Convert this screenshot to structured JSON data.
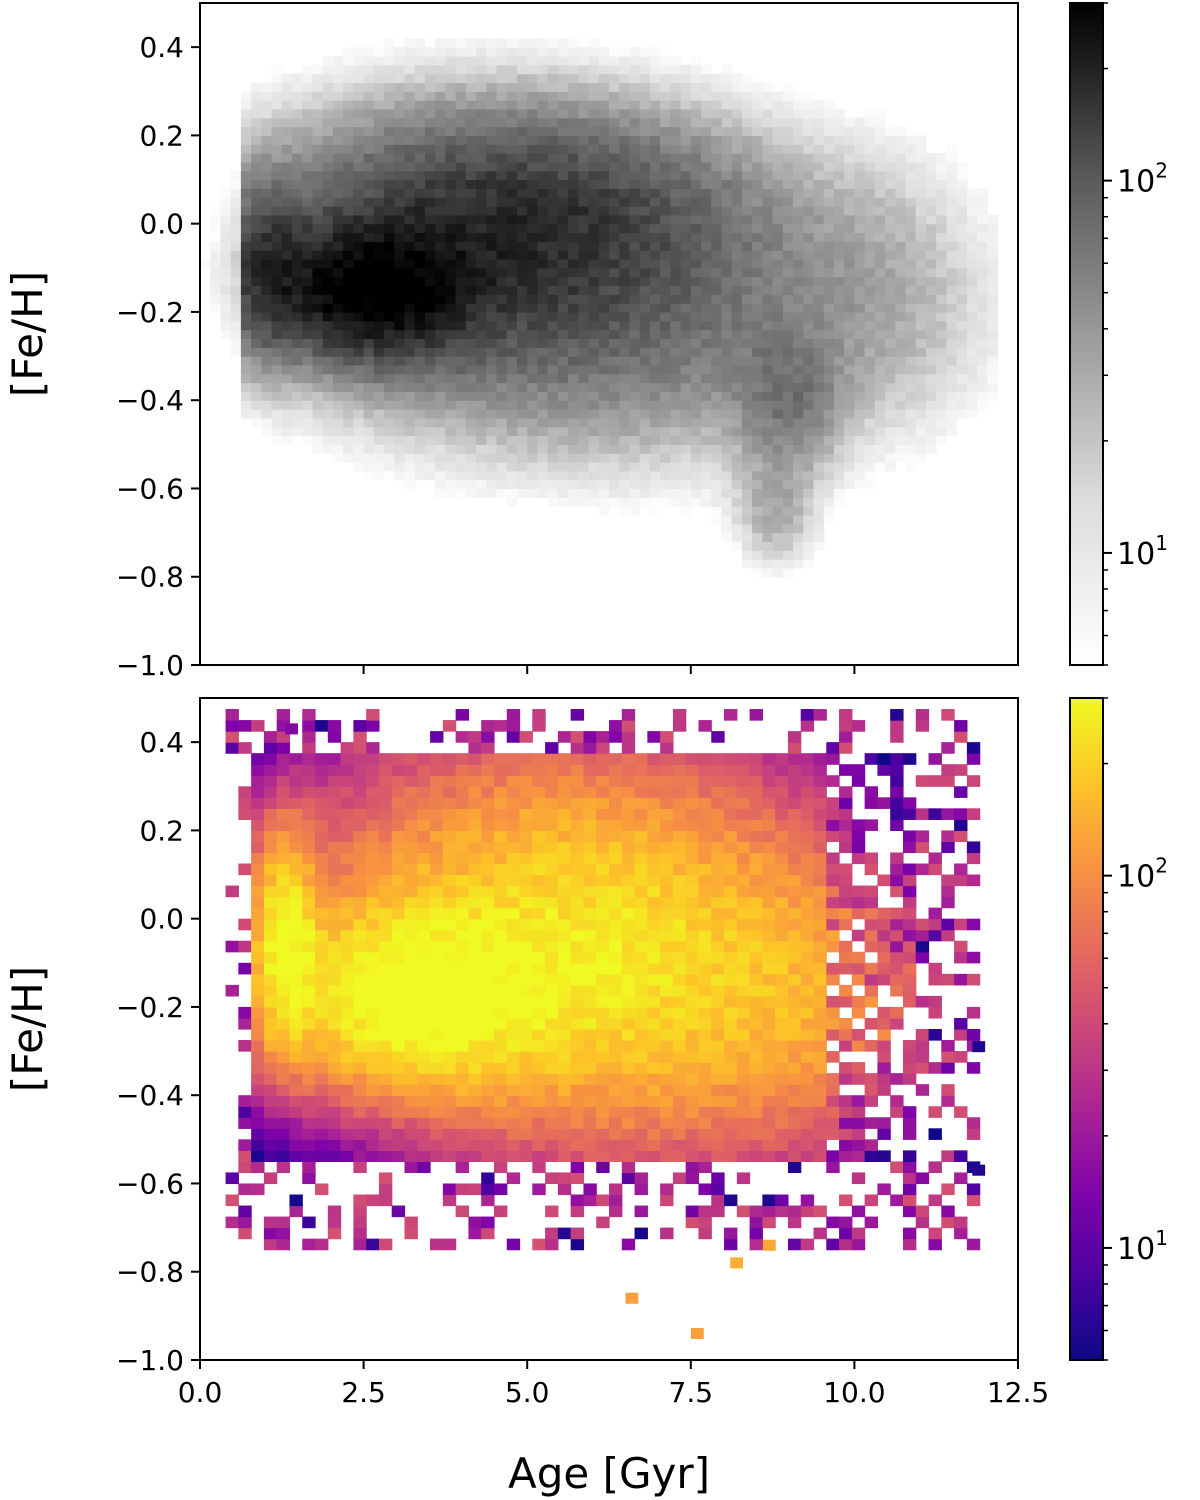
{
  "chart_data": [
    {
      "type": "heatmap",
      "panel": "top",
      "colormap": "gray_r",
      "x_range": [
        0.0,
        12.5
      ],
      "ylim": [
        -1.0,
        0.5
      ],
      "ylabel": "[Fe/H]",
      "yticks": [
        "0.4",
        "0.2",
        "0.0",
        "−0.2",
        "−0.4",
        "−0.6",
        "−0.8",
        "−1.0"
      ],
      "ytick_values": [
        0.4,
        0.2,
        0.0,
        -0.2,
        -0.4,
        -0.6,
        -0.8,
        -1.0
      ],
      "xtick_values": [
        2.5,
        5.0,
        7.5,
        10.0
      ],
      "colorbar": {
        "scale": "log",
        "min": 5,
        "max": 300,
        "tick_base": "10",
        "ticks": [
          {
            "value": 10,
            "exp": "1"
          },
          {
            "value": 100,
            "exp": "2"
          }
        ]
      },
      "density_components": [
        {
          "age": 2.6,
          "feh": -0.15,
          "sx": 0.9,
          "sy": 0.09,
          "amp": 260
        },
        {
          "age": 1.0,
          "feh": -0.1,
          "sx": 0.4,
          "sy": 0.12,
          "amp": 110
        },
        {
          "age": 3.8,
          "feh": -0.05,
          "sx": 2.0,
          "sy": 0.18,
          "amp": 110
        },
        {
          "age": 5.5,
          "feh": 0.05,
          "sx": 2.0,
          "sy": 0.14,
          "amp": 70
        },
        {
          "age": 6.5,
          "feh": -0.2,
          "sx": 2.5,
          "sy": 0.2,
          "amp": 65
        },
        {
          "age": 9.0,
          "feh": -0.4,
          "sx": 0.5,
          "sy": 0.1,
          "amp": 50
        },
        {
          "age": 8.8,
          "feh": -0.65,
          "sx": 0.4,
          "sy": 0.08,
          "amp": 28
        },
        {
          "age": 10.5,
          "feh": -0.15,
          "sx": 1.0,
          "sy": 0.2,
          "amp": 15
        }
      ]
    },
    {
      "type": "heatmap",
      "panel": "bottom",
      "colormap": "plasma",
      "xlim": [
        0.0,
        12.5
      ],
      "ylim": [
        -1.0,
        0.5
      ],
      "xlabel": "Age [Gyr]",
      "ylabel": "[Fe/H]",
      "xticks": [
        "0.0",
        "2.5",
        "5.0",
        "7.5",
        "10.0",
        "12.5"
      ],
      "xtick_values": [
        0.0,
        2.5,
        5.0,
        7.5,
        10.0,
        12.5
      ],
      "yticks": [
        "0.4",
        "0.2",
        "0.0",
        "−0.2",
        "−0.4",
        "−0.6",
        "−0.8",
        "−1.0"
      ],
      "ytick_values": [
        0.4,
        0.2,
        0.0,
        -0.2,
        -0.4,
        -0.6,
        -0.8,
        -1.0
      ],
      "colorbar": {
        "scale": "log",
        "min": 5,
        "max": 300,
        "tick_base": "10",
        "ticks": [
          {
            "value": 10,
            "exp": "1"
          },
          {
            "value": 100,
            "exp": "2"
          }
        ]
      },
      "occupied_region": {
        "age": [
          0.4,
          12.0
        ],
        "feh": [
          -0.95,
          0.48
        ]
      },
      "density_components": [
        {
          "age": 3.2,
          "feh": -0.18,
          "sx": 1.2,
          "sy": 0.12,
          "amp": 280
        },
        {
          "age": 1.3,
          "feh": -0.05,
          "sx": 0.3,
          "sy": 0.15,
          "amp": 260
        },
        {
          "age": 5.5,
          "feh": 0.0,
          "sx": 2.5,
          "sy": 0.25,
          "amp": 180
        },
        {
          "age": 7.0,
          "feh": -0.2,
          "sx": 2.5,
          "sy": 0.22,
          "amp": 110
        },
        {
          "age": 9.5,
          "feh": -0.2,
          "sx": 1.0,
          "sy": 0.2,
          "amp": 40
        }
      ],
      "isolated_cells": [
        {
          "age": 6.6,
          "feh": -0.86,
          "count": 120
        },
        {
          "age": 7.6,
          "feh": -0.94,
          "count": 120
        },
        {
          "age": 8.2,
          "feh": -0.78,
          "count": 140
        },
        {
          "age": 8.7,
          "feh": -0.74,
          "count": 130
        },
        {
          "age": 11.9,
          "feh": -0.29,
          "count": 6
        },
        {
          "age": 11.9,
          "feh": -0.57,
          "count": 6
        },
        {
          "age": 1.4,
          "feh": 0.43,
          "count": 15
        }
      ]
    }
  ]
}
